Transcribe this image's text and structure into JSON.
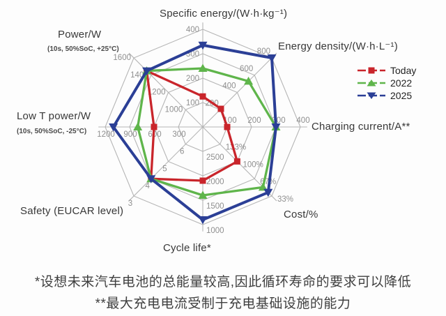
{
  "chart_data": {
    "type": "radar",
    "grid_levels": 4,
    "grid_color": "#b5b5b5",
    "tick_label_color": "#8f8f8f",
    "axes": [
      {
        "label": "Specific energy/(W·h·kg⁻¹)",
        "min": 0,
        "max": 400,
        "ticks": [
          "100",
          "200",
          "300",
          "400"
        ]
      },
      {
        "label": "Energy density/(W·h·L⁻¹)",
        "min": 0,
        "max": 800,
        "ticks": [
          "200",
          "400",
          "600",
          "800"
        ]
      },
      {
        "label": "Charging current/A**",
        "min": 0,
        "max": 400,
        "ticks": [
          "100",
          "200",
          "300",
          "400"
        ]
      },
      {
        "label": "Cost/%",
        "min": 166.7,
        "max": 33,
        "ticks": [
          "133%",
          "100%",
          "67%",
          "33%"
        ]
      },
      {
        "label": "Cycle life*",
        "min": 3000,
        "max": 1000,
        "ticks": [
          "2500",
          "2000",
          "1500",
          "1000"
        ]
      },
      {
        "label": "Safety (EUCAR level)",
        "min": 7,
        "max": 3,
        "ticks": [
          "6",
          "5",
          "4",
          "3"
        ]
      },
      {
        "label": "Low T power/W",
        "sublabel": "(10s, 50%SoC, -25°C)",
        "min": 0,
        "max": 1200,
        "ticks": [
          "300",
          "600",
          "900",
          "1200"
        ]
      },
      {
        "label": "Power/W",
        "sublabel": "(10s, 50%SoC, +25°C)",
        "min": 800,
        "max": 1600,
        "ticks": [
          "1000",
          "1200",
          "1400",
          "1600"
        ]
      }
    ],
    "series": [
      {
        "name": "Today",
        "color": "#c9252b",
        "marker": "square",
        "values": [
          125,
          210,
          100,
          100,
          1900,
          4,
          600,
          1450
        ]
      },
      {
        "name": "2022",
        "color": "#5fb54b",
        "marker": "triangle-up",
        "values": [
          240,
          530,
          300,
          50,
          1600,
          4,
          800,
          1450
        ]
      },
      {
        "name": "2025",
        "color": "#2b3f96",
        "marker": "triangle-down",
        "values": [
          335,
          800,
          300,
          40,
          1100,
          4,
          1100,
          1450
        ]
      }
    ],
    "legend_position": "top-right"
  },
  "footnotes": {
    "line1": "*设想未来汽车电池的总能量较高,因此循环寿命的要求可以降低",
    "line2": "**最大充电电流受制于充电基础设施的能力"
  }
}
